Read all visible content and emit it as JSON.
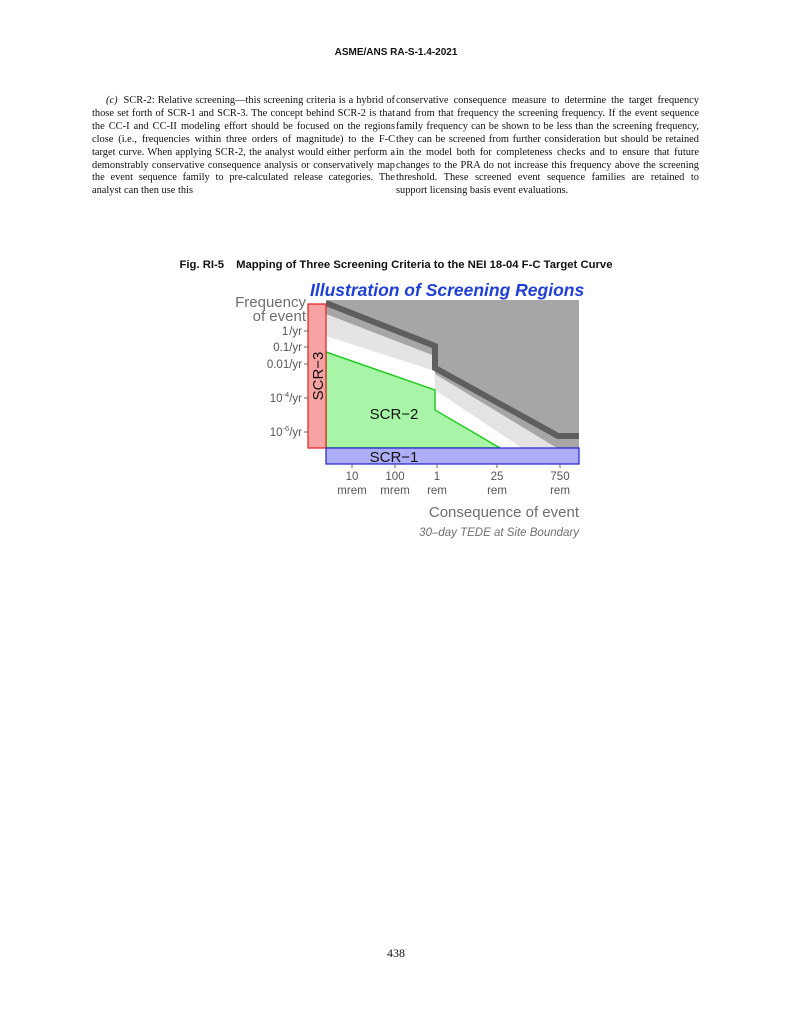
{
  "header": {
    "title": "ASME/ANS RA-S-1.4-2021"
  },
  "left_column": {
    "lead": "(c)",
    "text": "SCR-2: Relative screening—this screening criteria is a hybrid of those set forth of SCR-1 and SCR-3. The concept behind SCR-2 is that the CC-I and CC-II modeling effort should be focused on the regions close (i.e., frequencies within three orders of magnitude) to the F-C target curve. When applying SCR-2, the analyst would either perform a demonstrably conservative consequence analysis or conservatively map the event sequence family to pre-calculated release categories. The analyst can then use this"
  },
  "right_column": {
    "text": "conservative consequence measure to determine the target frequency and from that frequency the screening frequency. If the event sequence family frequency can be shown to be less than the screening frequency, they can be screened from further consideration but should be retained in the model both for completeness checks and to ensure that future changes to the PRA do not increase this frequency above the screening threshold. These screened event sequence families are retained to support licensing basis event evaluations."
  },
  "figure": {
    "number": "Fig. RI-5",
    "caption": "Mapping of Three Screening Criteria to the NEI 18-04 F-C Target Curve",
    "title": "Illustration of Screening Regions",
    "y_label_line1": "Frequency",
    "y_label_line2": "of event",
    "y_ticks": [
      "1/yr",
      "0.1/yr",
      "0.01/yr",
      "10-4/yr",
      "10-6/yr"
    ],
    "x_ticks": [
      {
        "value": "10",
        "unit": "mrem"
      },
      {
        "value": "100",
        "unit": "mrem"
      },
      {
        "value": "1",
        "unit": "rem"
      },
      {
        "value": "25",
        "unit": "rem"
      },
      {
        "value": "750",
        "unit": "rem"
      }
    ],
    "x_label": "Consequence of event",
    "x_sublabel": "30–day TEDE at Site Boundary",
    "regions": {
      "scr1": "SCR−1",
      "scr2": "SCR−2",
      "scr3": "SCR−3"
    },
    "colors": {
      "title": "#1f3fd6",
      "unacceptable": "#a6a6a6",
      "target_curve": "#5e5e5e",
      "band": "#e4e4e4",
      "scr2_fill": "#a8f5a8",
      "scr2_line": "#22cc22",
      "scr3_fill": "#f8a3a3",
      "scr3_line": "#e02020",
      "scr1_fill": "#aeaef6",
      "scr1_line": "#2020cc"
    }
  },
  "page_number": "438"
}
